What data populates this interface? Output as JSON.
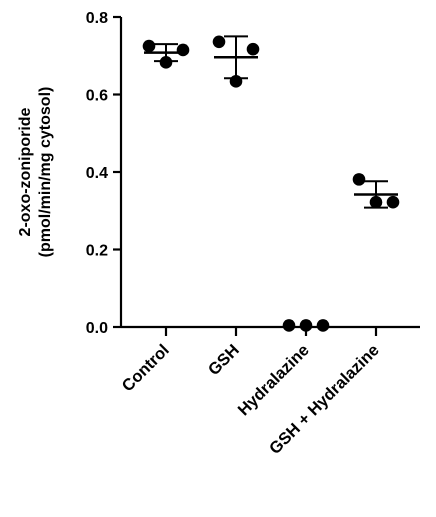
{
  "chart_data": {
    "type": "scatter",
    "title": "",
    "xlabel": "",
    "ylabel_lines": [
      "2-oxo-zoniporide",
      "(pmol/min/mg cytosol)"
    ],
    "ylim": [
      0,
      0.8
    ],
    "yticks": [
      0.0,
      0.2,
      0.4,
      0.6,
      0.8
    ],
    "ytick_labels": [
      "0.0",
      "0.2",
      "0.4",
      "0.6",
      "0.8"
    ],
    "categories": [
      "Control",
      "GSH",
      "Hydralazine",
      "GSH + Hydralazine"
    ],
    "groups": [
      {
        "category": "Control",
        "points": [
          0.725,
          0.683,
          0.715
        ],
        "mean": 0.708,
        "sd": 0.022
      },
      {
        "category": "GSH",
        "points": [
          0.736,
          0.634,
          0.717
        ],
        "mean": 0.696,
        "sd": 0.054
      },
      {
        "category": "Hydralazine",
        "points": [
          0.004,
          0.004,
          0.004
        ],
        "mean": 0.004,
        "sd": 0.0
      },
      {
        "category": "GSH + Hydralazine",
        "points": [
          0.381,
          0.322,
          0.322
        ],
        "mean": 0.342,
        "sd": 0.034
      }
    ],
    "marker": "filled-circle",
    "error_bars": "mean ± SD",
    "grid": false,
    "legend": "none",
    "colors": {
      "marker": "#000000",
      "axis": "#000000"
    }
  }
}
